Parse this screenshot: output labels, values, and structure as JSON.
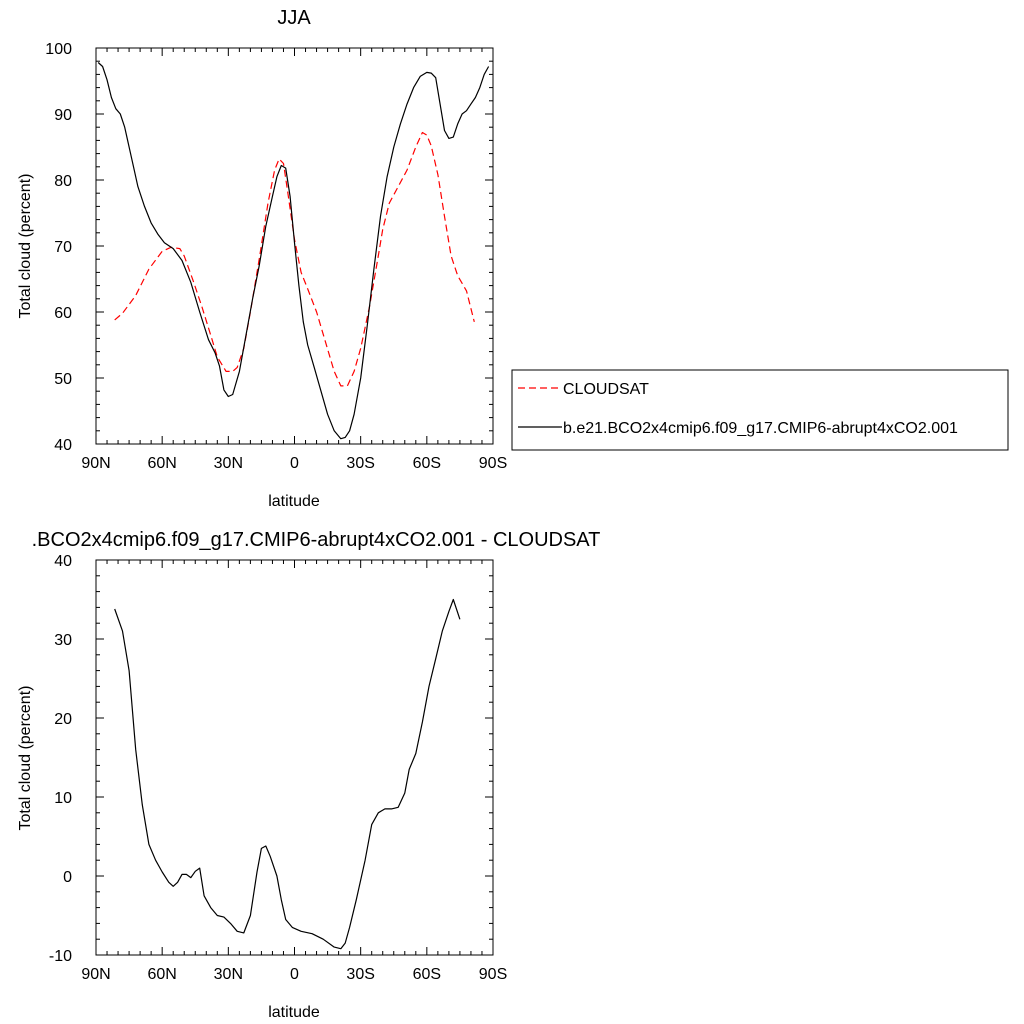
{
  "chart_data": [
    {
      "type": "line",
      "title": "JJA",
      "xlabel": "latitude",
      "ylabel": "Total cloud (percent)",
      "xlim": [
        90,
        -90
      ],
      "ylim": [
        40,
        100
      ],
      "x_ticks": [
        {
          "value": 90,
          "label": "90N"
        },
        {
          "value": 60,
          "label": "60N"
        },
        {
          "value": 30,
          "label": "30N"
        },
        {
          "value": 0,
          "label": "0"
        },
        {
          "value": -30,
          "label": "30S"
        },
        {
          "value": -60,
          "label": "60S"
        },
        {
          "value": -90,
          "label": "90S"
        }
      ],
      "y_ticks": [
        40,
        50,
        60,
        70,
        80,
        90,
        100
      ],
      "legend_position": "right",
      "series": [
        {
          "name": "CLOUDSAT",
          "color": "#ff0000",
          "dash": "dashed",
          "points": [
            [
              81.5,
              58.8
            ],
            [
              78,
              59.8
            ],
            [
              72,
              62.5
            ],
            [
              66,
              66.5
            ],
            [
              60,
              69.2
            ],
            [
              56,
              69.8
            ],
            [
              52,
              69.6
            ],
            [
              50,
              68.5
            ],
            [
              46,
              64.8
            ],
            [
              42,
              60.8
            ],
            [
              38,
              56.5
            ],
            [
              35,
              53.2
            ],
            [
              31,
              51
            ],
            [
              28,
              51
            ],
            [
              26,
              51.6
            ],
            [
              23,
              54.5
            ],
            [
              20,
              60
            ],
            [
              16,
              68
            ],
            [
              12,
              76.5
            ],
            [
              9,
              81.5
            ],
            [
              7,
              83.2
            ],
            [
              5,
              82.5
            ],
            [
              3,
              78
            ],
            [
              0,
              71
            ],
            [
              -3,
              66
            ],
            [
              -6,
              63.5
            ],
            [
              -10,
              60
            ],
            [
              -14,
              55.5
            ],
            [
              -18,
              51
            ],
            [
              -21,
              48.8
            ],
            [
              -24,
              48.8
            ],
            [
              -27,
              51
            ],
            [
              -30,
              54.5
            ],
            [
              -34,
              60.8
            ],
            [
              -38,
              68.5
            ],
            [
              -40,
              72.5
            ],
            [
              -43,
              76.5
            ],
            [
              -47,
              79
            ],
            [
              -51,
              81.5
            ],
            [
              -55,
              85
            ],
            [
              -58,
              87.2
            ],
            [
              -60,
              86.8
            ],
            [
              -62,
              85.2
            ],
            [
              -65,
              80.8
            ],
            [
              -68,
              74.5
            ],
            [
              -71,
              68.5
            ],
            [
              -74,
              65.5
            ],
            [
              -78,
              63.2
            ],
            [
              -81.5,
              58.5
            ]
          ]
        },
        {
          "name": "b.e21.BCO2x4cmip6.f09_g17.CMIP6-abrupt4xCO2.001",
          "color": "#000000",
          "dash": "solid",
          "points": [
            [
              89,
              97.8
            ],
            [
              87,
              97.2
            ],
            [
              85,
              95.2
            ],
            [
              83,
              92.5
            ],
            [
              81,
              90.8
            ],
            [
              79,
              90
            ],
            [
              77,
              88
            ],
            [
              75,
              85
            ],
            [
              73,
              82
            ],
            [
              71,
              79
            ],
            [
              68,
              76
            ],
            [
              65,
              73.5
            ],
            [
              62,
              71.8
            ],
            [
              59,
              70.5
            ],
            [
              55,
              69.6
            ],
            [
              51,
              67.8
            ],
            [
              47,
              64.5
            ],
            [
              43,
              60
            ],
            [
              39,
              55.8
            ],
            [
              36,
              53.8
            ],
            [
              34,
              51.8
            ],
            [
              32,
              48.2
            ],
            [
              30,
              47.2
            ],
            [
              28,
              47.5
            ],
            [
              25,
              51
            ],
            [
              22,
              56.5
            ],
            [
              19,
              62
            ],
            [
              16,
              67
            ],
            [
              13,
              73
            ],
            [
              10,
              77.5
            ],
            [
              8,
              80.5
            ],
            [
              6,
              82.2
            ],
            [
              4,
              81.8
            ],
            [
              2,
              77.5
            ],
            [
              0,
              70.5
            ],
            [
              -2,
              64
            ],
            [
              -4,
              58.5
            ],
            [
              -6,
              55
            ],
            [
              -9,
              51.5
            ],
            [
              -12,
              48
            ],
            [
              -15,
              44.5
            ],
            [
              -18,
              42
            ],
            [
              -21,
              40.8
            ],
            [
              -23,
              41
            ],
            [
              -25,
              42
            ],
            [
              -27,
              44.5
            ],
            [
              -30,
              50
            ],
            [
              -33,
              58
            ],
            [
              -36,
              66.5
            ],
            [
              -39,
              74.5
            ],
            [
              -42,
              80.5
            ],
            [
              -45,
              85
            ],
            [
              -48,
              88.5
            ],
            [
              -51,
              91.5
            ],
            [
              -54,
              94
            ],
            [
              -57,
              95.7
            ],
            [
              -60,
              96.3
            ],
            [
              -62,
              96.2
            ],
            [
              -64,
              95.5
            ],
            [
              -66,
              91.5
            ],
            [
              -68,
              87.5
            ],
            [
              -70,
              86.3
            ],
            [
              -72,
              86.5
            ],
            [
              -74,
              88.5
            ],
            [
              -76,
              90
            ],
            [
              -78,
              90.5
            ],
            [
              -80,
              91.5
            ],
            [
              -82,
              92.5
            ],
            [
              -84,
              94
            ],
            [
              -86,
              96
            ],
            [
              -88,
              97.2
            ]
          ]
        }
      ]
    },
    {
      "type": "line",
      "title": ".BCO2x4cmip6.f09_g17.CMIP6-abrupt4xCO2.001 - CLOUDSAT",
      "xlabel": "latitude",
      "ylabel": "Total cloud (percent)",
      "xlim": [
        90,
        -90
      ],
      "ylim": [
        -10,
        40
      ],
      "x_ticks": [
        {
          "value": 90,
          "label": "90N"
        },
        {
          "value": 60,
          "label": "60N"
        },
        {
          "value": 30,
          "label": "30N"
        },
        {
          "value": 0,
          "label": "0"
        },
        {
          "value": -30,
          "label": "30S"
        },
        {
          "value": -60,
          "label": "60S"
        },
        {
          "value": -90,
          "label": "90S"
        }
      ],
      "y_ticks": [
        -10,
        0,
        10,
        20,
        30,
        40
      ],
      "series": [
        {
          "color": "#000000",
          "dash": "solid",
          "points": [
            [
              81.5,
              33.8
            ],
            [
              78,
              31
            ],
            [
              75,
              26
            ],
            [
              72,
              16
            ],
            [
              69,
              9
            ],
            [
              66,
              4
            ],
            [
              63,
              2
            ],
            [
              60,
              0.5
            ],
            [
              57,
              -0.8
            ],
            [
              55,
              -1.3
            ],
            [
              53,
              -0.8
            ],
            [
              51,
              0.2
            ],
            [
              49,
              0.2
            ],
            [
              47,
              -0.2
            ],
            [
              45,
              0.6
            ],
            [
              43,
              1
            ],
            [
              41,
              -2.5
            ],
            [
              38,
              -4
            ],
            [
              35,
              -5
            ],
            [
              32,
              -5.2
            ],
            [
              29,
              -6
            ],
            [
              26,
              -7
            ],
            [
              23,
              -7.2
            ],
            [
              20,
              -5
            ],
            [
              17,
              0.5
            ],
            [
              15,
              3.5
            ],
            [
              13,
              3.8
            ],
            [
              11,
              2.5
            ],
            [
              8,
              0
            ],
            [
              6,
              -3
            ],
            [
              4,
              -5.5
            ],
            [
              1,
              -6.5
            ],
            [
              -3,
              -7
            ],
            [
              -8,
              -7.3
            ],
            [
              -13,
              -8
            ],
            [
              -18,
              -9
            ],
            [
              -21,
              -9.2
            ],
            [
              -23,
              -8.5
            ],
            [
              -25,
              -6.5
            ],
            [
              -28,
              -3
            ],
            [
              -32,
              2
            ],
            [
              -35,
              6.5
            ],
            [
              -38,
              8
            ],
            [
              -41,
              8.5
            ],
            [
              -44,
              8.5
            ],
            [
              -47,
              8.7
            ],
            [
              -50,
              10.5
            ],
            [
              -52,
              13.5
            ],
            [
              -55,
              15.5
            ],
            [
              -58,
              19.5
            ],
            [
              -61,
              24
            ],
            [
              -64,
              27.5
            ],
            [
              -67,
              31
            ],
            [
              -70,
              33.5
            ],
            [
              -72,
              35
            ],
            [
              -75,
              32.5
            ]
          ]
        }
      ]
    }
  ]
}
